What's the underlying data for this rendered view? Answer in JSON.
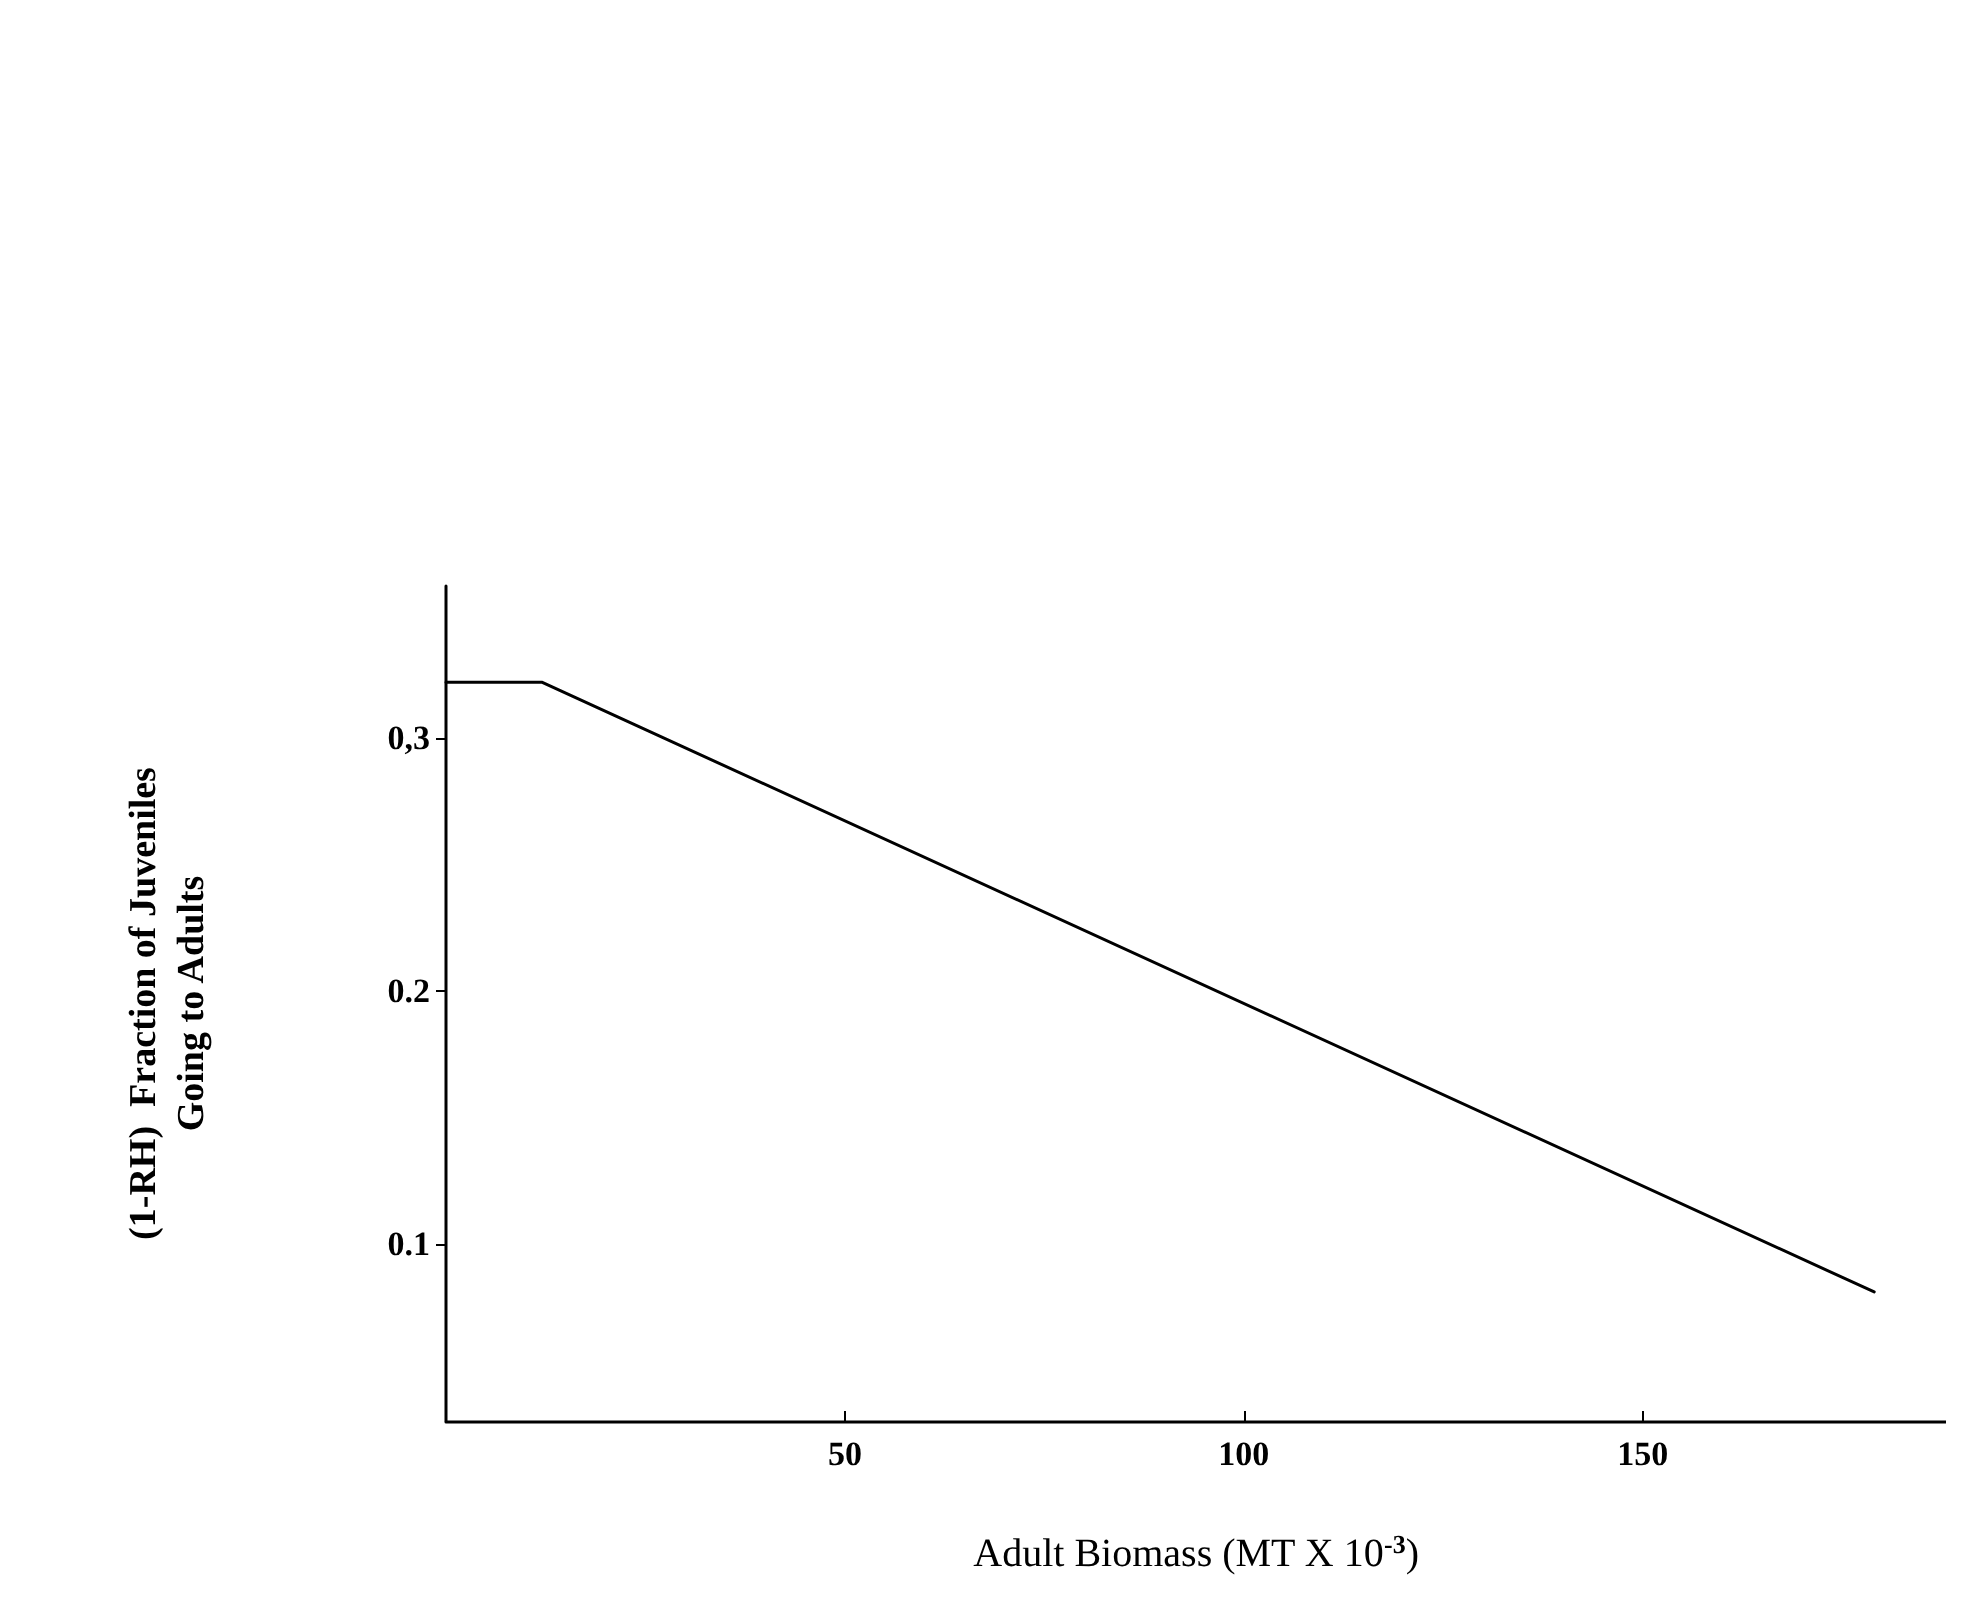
{
  "chart_data": {
    "type": "line",
    "xlabel": "Adult Biomass (MT X 10$^{-3}$)",
    "ylabel": "(1-RH)  Fraction of Juveniles\nGoing to Adults",
    "x": [
      0,
      12,
      179
    ],
    "series": [
      {
        "color": "#000000",
        "values": [
          0.322,
          0.322,
          0.081
        ]
      }
    ],
    "xlim": [
      0,
      188
    ],
    "xticks": [
      50,
      100,
      150
    ],
    "ylim": [
      0.03,
      0.36
    ],
    "yticks": [
      {
        "value": 0.1,
        "label": "0.1"
      },
      {
        "value": 0.2,
        "label": "0.2"
      },
      {
        "value": 0.3,
        "label": "0,3"
      }
    ],
    "grid": false,
    "marker": "none",
    "line_style": "solid"
  }
}
